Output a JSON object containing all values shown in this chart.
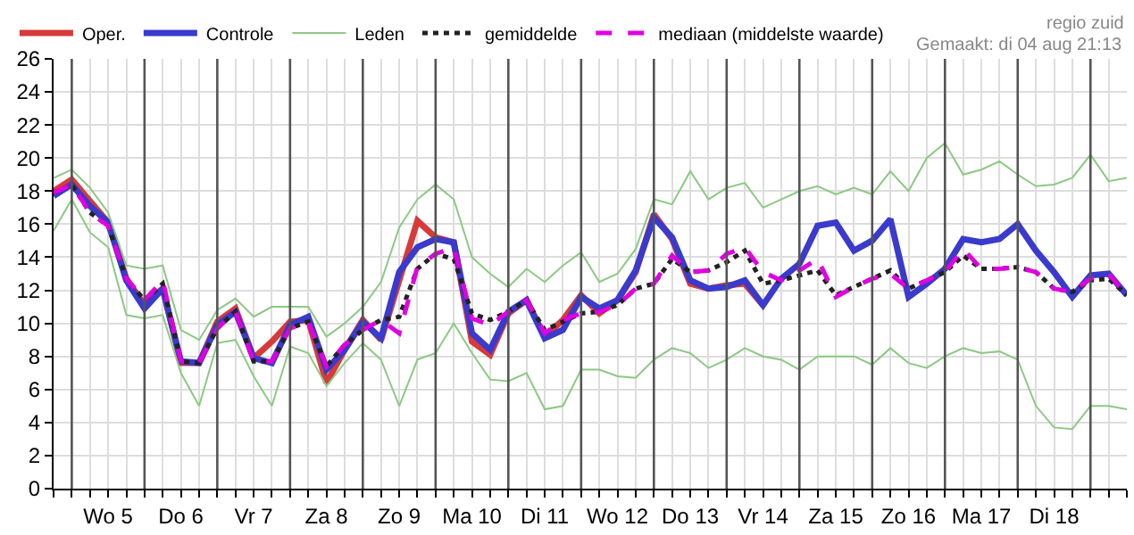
{
  "chart_data": {
    "type": "line",
    "categories": [
      null,
      null,
      null,
      "Wo 5",
      null,
      null,
      null,
      "Do 6",
      null,
      null,
      null,
      "Vr 7",
      null,
      null,
      null,
      "Za 8",
      null,
      null,
      null,
      "Zo 9",
      null,
      null,
      null,
      "Ma 10",
      null,
      null,
      null,
      "Di 11",
      null,
      null,
      null,
      "Wo 12",
      null,
      null,
      null,
      "Do 13",
      null,
      null,
      null,
      "Vr 14",
      null,
      null,
      null,
      "Za 15",
      null,
      null,
      null,
      "Zo 16",
      null,
      null,
      null,
      "Ma 17",
      null,
      null,
      null,
      "Di 18",
      null,
      null,
      null,
      null
    ],
    "ylim": [
      0,
      26
    ],
    "yticks": [
      0,
      2,
      4,
      6,
      8,
      10,
      12,
      14,
      16,
      18,
      20,
      22,
      24,
      26
    ],
    "grid": true,
    "legend": "top left",
    "marker": "none",
    "series": [
      {
        "name": "Oper.",
        "color": "#d63a3a",
        "line_style": "solid",
        "values": [
          18.0,
          18.7,
          17.4,
          16.1,
          12.7,
          11.1,
          12.1,
          7.6,
          7.6,
          10.1,
          10.9,
          7.9,
          8.9,
          10.1,
          10.2,
          6.4,
          8.4,
          10.2,
          9.0,
          12.6,
          16.2,
          15.2,
          14.9,
          8.9,
          8.1,
          10.6,
          11.4,
          9.2,
          10.2,
          11.7,
          10.6,
          11.4,
          13.1,
          16.6,
          15.1,
          12.4,
          12.1,
          12.3,
          12.4,
          11.1,
          null,
          null,
          null,
          null,
          null,
          null,
          null,
          null,
          null,
          null,
          null,
          null,
          null,
          null,
          null,
          null,
          null,
          null,
          null,
          null
        ]
      },
      {
        "name": "Controle",
        "color": "#3a3acc",
        "line_style": "solid",
        "values": [
          17.7,
          18.4,
          17.1,
          16.1,
          12.6,
          10.9,
          12.1,
          7.7,
          7.6,
          9.9,
          10.7,
          7.9,
          7.6,
          9.9,
          10.4,
          7.2,
          8.4,
          10.1,
          9.1,
          13.1,
          14.6,
          15.1,
          14.9,
          9.4,
          8.4,
          10.7,
          11.4,
          9.1,
          9.6,
          11.6,
          10.9,
          11.4,
          13.2,
          16.4,
          15.2,
          12.6,
          12.1,
          12.2,
          12.6,
          11.1,
          12.7,
          13.6,
          15.9,
          16.1,
          14.4,
          15.0,
          16.3,
          11.6,
          12.4,
          13.3,
          15.1,
          14.9,
          15.1,
          16.0,
          14.4,
          13.1,
          11.6,
          12.9,
          13.0,
          11.7
        ]
      },
      {
        "name": "Leden",
        "color": "#8cc983",
        "values": [
          18.8,
          19.3,
          18.2,
          16.7,
          13.5,
          13.3,
          13.5,
          9.6,
          9.0,
          10.8,
          11.5,
          10.4,
          11.0,
          11.0,
          11.0,
          9.2,
          10.0,
          11.0,
          12.5,
          15.8,
          17.5,
          18.4,
          17.5,
          14.0,
          13.0,
          12.2,
          13.3,
          12.5,
          13.5,
          14.3,
          12.5,
          13.0,
          14.5,
          17.5,
          17.2,
          19.2,
          17.5,
          18.2,
          18.5,
          17.0,
          17.5,
          18.0,
          18.3,
          17.8,
          18.2,
          17.8,
          19.2,
          18.0,
          20.0,
          20.9,
          19.0,
          19.3,
          19.8,
          19.0,
          18.3,
          18.4,
          18.8,
          20.2,
          18.6,
          18.8
        ]
      },
      {
        "color": "#8cc983",
        "values": [
          15.6,
          17.5,
          15.5,
          14.6,
          10.5,
          10.3,
          10.5,
          7.0,
          5.0,
          8.8,
          9.0,
          6.8,
          5.0,
          8.6,
          8.2,
          6.2,
          7.6,
          8.8,
          7.8,
          5.0,
          7.8,
          8.2,
          10.0,
          8.2,
          6.6,
          6.5,
          7.0,
          4.8,
          5.0,
          7.2,
          7.2,
          6.8,
          6.7,
          7.8,
          8.5,
          8.2,
          7.3,
          7.8,
          8.5,
          8.0,
          7.8,
          7.2,
          8.0,
          8.0,
          8.0,
          7.5,
          8.5,
          7.6,
          7.3,
          8.0,
          8.5,
          8.2,
          8.3,
          7.8,
          5.0,
          3.7,
          3.6,
          5.0,
          5.0,
          4.8
        ]
      },
      {
        "name": "gemiddelde",
        "color": "#222222",
        "line_style": "dotted",
        "values": [
          17.9,
          18.4,
          16.7,
          15.9,
          12.7,
          11.4,
          12.4,
          7.7,
          7.6,
          9.7,
          10.7,
          7.7,
          7.7,
          9.7,
          10.1,
          7.4,
          8.7,
          9.6,
          10.2,
          10.4,
          13.3,
          14.2,
          13.9,
          10.6,
          10.2,
          10.7,
          11.4,
          9.6,
          10.1,
          10.6,
          10.7,
          11.1,
          12.1,
          12.4,
          13.9,
          13.1,
          13.2,
          13.7,
          14.4,
          12.4,
          12.6,
          12.9,
          13.2,
          11.7,
          12.2,
          12.7,
          13.2,
          12.1,
          12.6,
          13.1,
          14.1,
          13.3,
          13.3,
          13.4,
          13.1,
          12.1,
          11.9,
          12.6,
          12.7,
          11.7
        ]
      },
      {
        "name": "mediaan (middelste waarde)",
        "color": "#e000e0",
        "line_style": "dashed",
        "values": [
          17.9,
          18.4,
          16.7,
          15.9,
          12.7,
          11.4,
          12.6,
          7.7,
          7.6,
          9.7,
          10.7,
          7.7,
          7.7,
          9.7,
          10.1,
          7.4,
          8.7,
          9.6,
          10.2,
          9.4,
          13.4,
          14.2,
          14.6,
          10.3,
          9.9,
          10.7,
          11.4,
          9.4,
          10.2,
          10.6,
          10.7,
          11.1,
          12.1,
          12.4,
          14.1,
          13.1,
          13.2,
          14.2,
          14.6,
          13.1,
          12.6,
          13.2,
          13.9,
          11.6,
          12.2,
          12.7,
          13.0,
          12.1,
          12.6,
          13.1,
          14.5,
          13.3,
          13.3,
          13.4,
          13.1,
          12.1,
          11.9,
          12.7,
          13.0,
          11.7
        ]
      }
    ],
    "annotations": [
      "regio zuid",
      "Gemaakt: di 04 aug 21:13"
    ]
  }
}
